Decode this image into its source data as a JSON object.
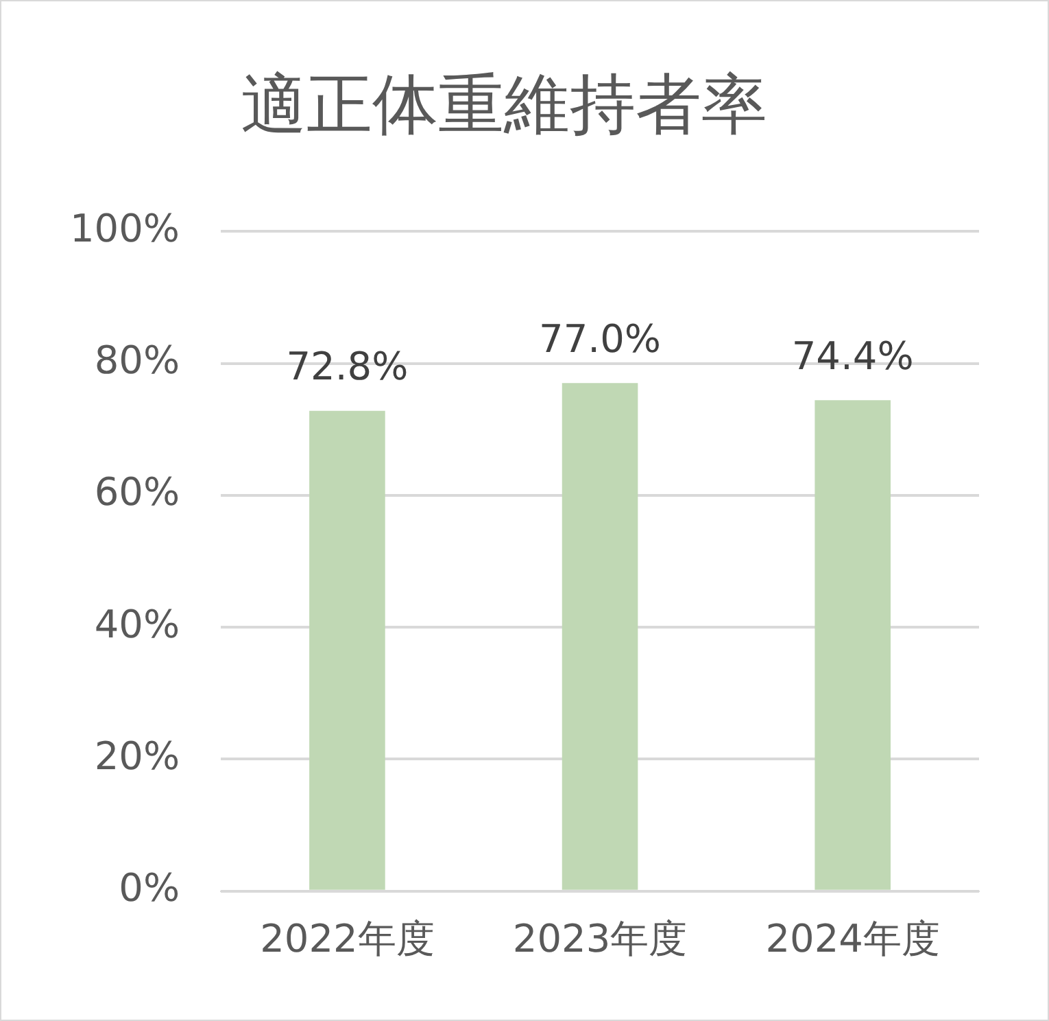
{
  "chart_data": {
    "type": "bar",
    "title": "適正体重維持者率",
    "categories": [
      "2022年度",
      "2023年度",
      "2024年度"
    ],
    "values": [
      72.8,
      77.0,
      74.4
    ],
    "value_labels": [
      "72.8%",
      "77.0%",
      "74.4%"
    ],
    "color": "#c0d8b4",
    "ylim": [
      0,
      100
    ],
    "yticks": [
      {
        "value": 0,
        "label": "0%"
      },
      {
        "value": 20,
        "label": "20%"
      },
      {
        "value": 40,
        "label": "40%"
      },
      {
        "value": 60,
        "label": "60%"
      },
      {
        "value": 80,
        "label": "80%"
      },
      {
        "value": 100,
        "label": "100%"
      }
    ],
    "grid": "y",
    "legend": false
  }
}
